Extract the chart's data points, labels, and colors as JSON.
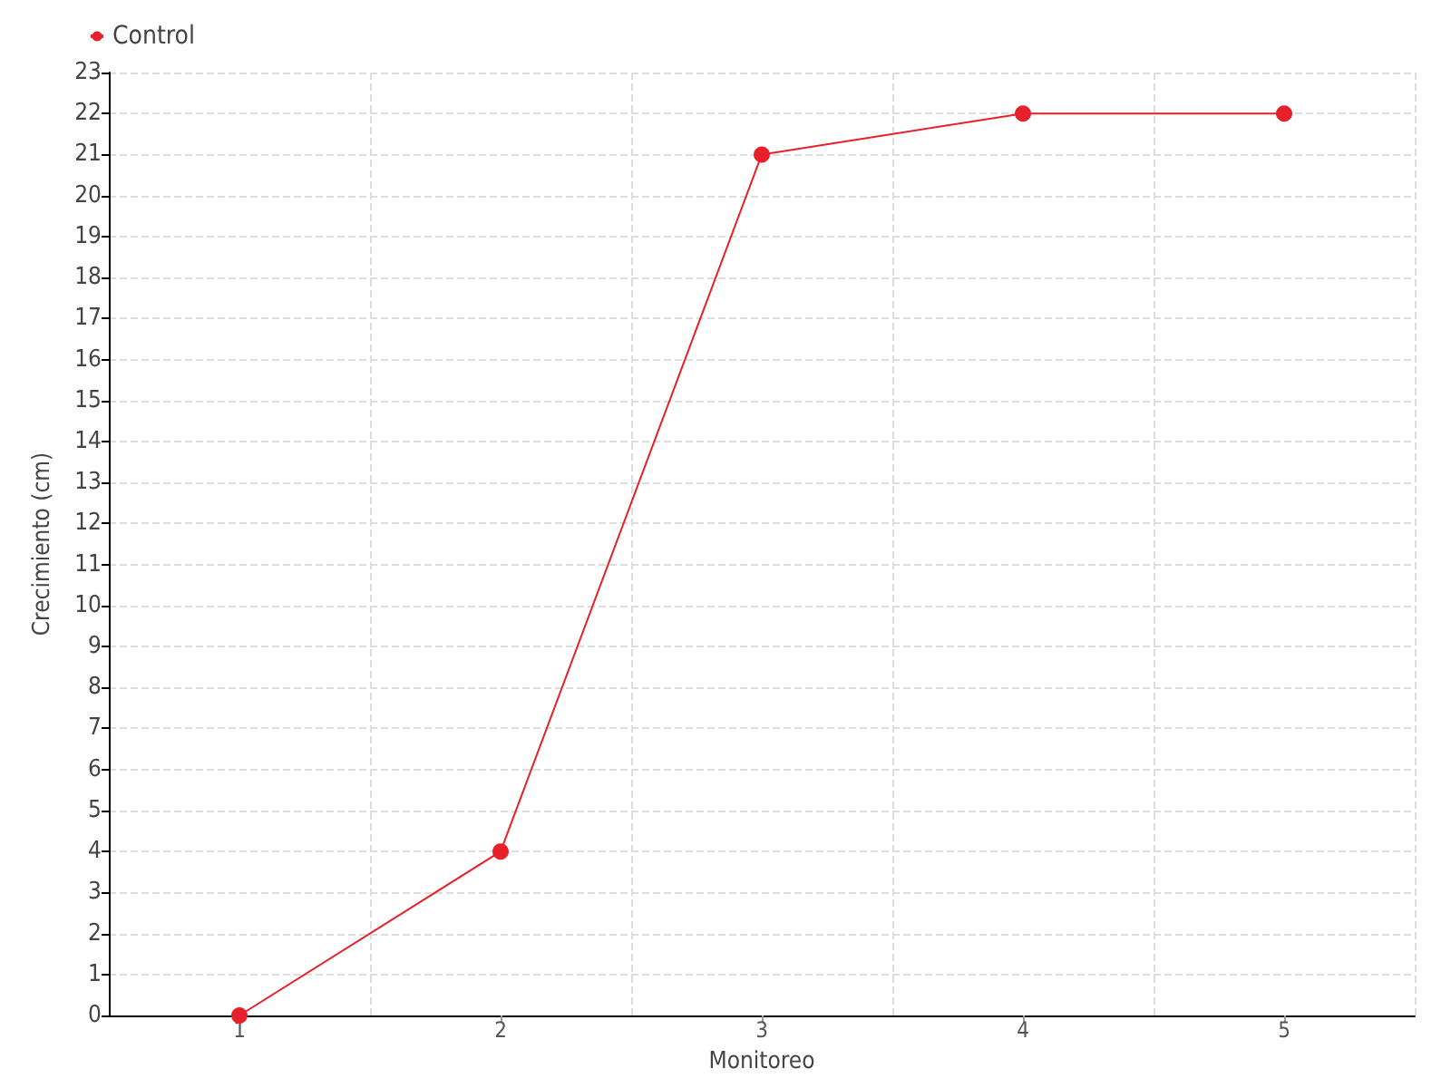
{
  "chart_data": {
    "type": "line",
    "xlabel": "Monitoreo",
    "ylabel": "Crecimiento (cm)",
    "categories": [
      "1",
      "2",
      "3",
      "4",
      "5"
    ],
    "series": [
      {
        "name": "Control",
        "color": "#e8202a",
        "values": [
          0,
          4,
          21,
          22,
          22
        ]
      }
    ],
    "ylim": [
      0,
      23
    ],
    "yticks": [
      0,
      1,
      2,
      3,
      4,
      5,
      6,
      7,
      8,
      9,
      10,
      11,
      12,
      13,
      14,
      15,
      16,
      17,
      18,
      19,
      20,
      21,
      22,
      23
    ],
    "grid": true,
    "legend": "top left",
    "marker": "circle",
    "line_style": "solid"
  }
}
